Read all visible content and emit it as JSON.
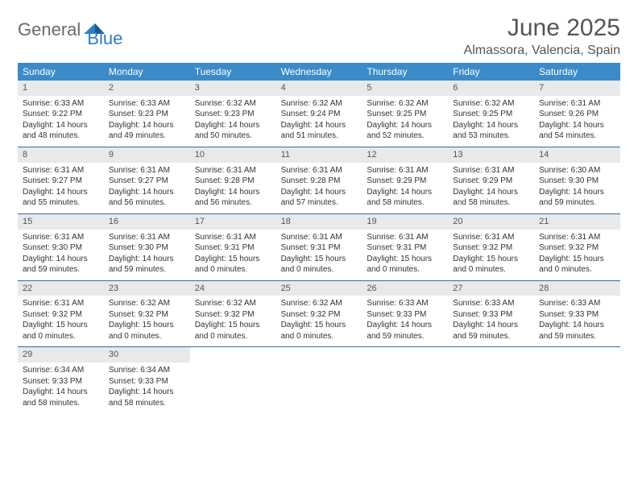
{
  "logo": {
    "part1": "General",
    "part2": "Blue"
  },
  "title": "June 2025",
  "location": "Almassora, Valencia, Spain",
  "colors": {
    "header_bg": "#3b8bc8",
    "header_text": "#ffffff",
    "daynum_bg": "#e8e9ea",
    "week_border": "#2f6da3",
    "title_color": "#555555",
    "body_text": "#333333",
    "logo_gray": "#6a6a6a",
    "logo_blue": "#2f7ec2"
  },
  "weekdays": [
    "Sunday",
    "Monday",
    "Tuesday",
    "Wednesday",
    "Thursday",
    "Friday",
    "Saturday"
  ],
  "weeks": [
    [
      {
        "n": "1",
        "sr": "Sunrise: 6:33 AM",
        "ss": "Sunset: 9:22 PM",
        "d1": "Daylight: 14 hours",
        "d2": "and 48 minutes."
      },
      {
        "n": "2",
        "sr": "Sunrise: 6:33 AM",
        "ss": "Sunset: 9:23 PM",
        "d1": "Daylight: 14 hours",
        "d2": "and 49 minutes."
      },
      {
        "n": "3",
        "sr": "Sunrise: 6:32 AM",
        "ss": "Sunset: 9:23 PM",
        "d1": "Daylight: 14 hours",
        "d2": "and 50 minutes."
      },
      {
        "n": "4",
        "sr": "Sunrise: 6:32 AM",
        "ss": "Sunset: 9:24 PM",
        "d1": "Daylight: 14 hours",
        "d2": "and 51 minutes."
      },
      {
        "n": "5",
        "sr": "Sunrise: 6:32 AM",
        "ss": "Sunset: 9:25 PM",
        "d1": "Daylight: 14 hours",
        "d2": "and 52 minutes."
      },
      {
        "n": "6",
        "sr": "Sunrise: 6:32 AM",
        "ss": "Sunset: 9:25 PM",
        "d1": "Daylight: 14 hours",
        "d2": "and 53 minutes."
      },
      {
        "n": "7",
        "sr": "Sunrise: 6:31 AM",
        "ss": "Sunset: 9:26 PM",
        "d1": "Daylight: 14 hours",
        "d2": "and 54 minutes."
      }
    ],
    [
      {
        "n": "8",
        "sr": "Sunrise: 6:31 AM",
        "ss": "Sunset: 9:27 PM",
        "d1": "Daylight: 14 hours",
        "d2": "and 55 minutes."
      },
      {
        "n": "9",
        "sr": "Sunrise: 6:31 AM",
        "ss": "Sunset: 9:27 PM",
        "d1": "Daylight: 14 hours",
        "d2": "and 56 minutes."
      },
      {
        "n": "10",
        "sr": "Sunrise: 6:31 AM",
        "ss": "Sunset: 9:28 PM",
        "d1": "Daylight: 14 hours",
        "d2": "and 56 minutes."
      },
      {
        "n": "11",
        "sr": "Sunrise: 6:31 AM",
        "ss": "Sunset: 9:28 PM",
        "d1": "Daylight: 14 hours",
        "d2": "and 57 minutes."
      },
      {
        "n": "12",
        "sr": "Sunrise: 6:31 AM",
        "ss": "Sunset: 9:29 PM",
        "d1": "Daylight: 14 hours",
        "d2": "and 58 minutes."
      },
      {
        "n": "13",
        "sr": "Sunrise: 6:31 AM",
        "ss": "Sunset: 9:29 PM",
        "d1": "Daylight: 14 hours",
        "d2": "and 58 minutes."
      },
      {
        "n": "14",
        "sr": "Sunrise: 6:30 AM",
        "ss": "Sunset: 9:30 PM",
        "d1": "Daylight: 14 hours",
        "d2": "and 59 minutes."
      }
    ],
    [
      {
        "n": "15",
        "sr": "Sunrise: 6:31 AM",
        "ss": "Sunset: 9:30 PM",
        "d1": "Daylight: 14 hours",
        "d2": "and 59 minutes."
      },
      {
        "n": "16",
        "sr": "Sunrise: 6:31 AM",
        "ss": "Sunset: 9:30 PM",
        "d1": "Daylight: 14 hours",
        "d2": "and 59 minutes."
      },
      {
        "n": "17",
        "sr": "Sunrise: 6:31 AM",
        "ss": "Sunset: 9:31 PM",
        "d1": "Daylight: 15 hours",
        "d2": "and 0 minutes."
      },
      {
        "n": "18",
        "sr": "Sunrise: 6:31 AM",
        "ss": "Sunset: 9:31 PM",
        "d1": "Daylight: 15 hours",
        "d2": "and 0 minutes."
      },
      {
        "n": "19",
        "sr": "Sunrise: 6:31 AM",
        "ss": "Sunset: 9:31 PM",
        "d1": "Daylight: 15 hours",
        "d2": "and 0 minutes."
      },
      {
        "n": "20",
        "sr": "Sunrise: 6:31 AM",
        "ss": "Sunset: 9:32 PM",
        "d1": "Daylight: 15 hours",
        "d2": "and 0 minutes."
      },
      {
        "n": "21",
        "sr": "Sunrise: 6:31 AM",
        "ss": "Sunset: 9:32 PM",
        "d1": "Daylight: 15 hours",
        "d2": "and 0 minutes."
      }
    ],
    [
      {
        "n": "22",
        "sr": "Sunrise: 6:31 AM",
        "ss": "Sunset: 9:32 PM",
        "d1": "Daylight: 15 hours",
        "d2": "and 0 minutes."
      },
      {
        "n": "23",
        "sr": "Sunrise: 6:32 AM",
        "ss": "Sunset: 9:32 PM",
        "d1": "Daylight: 15 hours",
        "d2": "and 0 minutes."
      },
      {
        "n": "24",
        "sr": "Sunrise: 6:32 AM",
        "ss": "Sunset: 9:32 PM",
        "d1": "Daylight: 15 hours",
        "d2": "and 0 minutes."
      },
      {
        "n": "25",
        "sr": "Sunrise: 6:32 AM",
        "ss": "Sunset: 9:32 PM",
        "d1": "Daylight: 15 hours",
        "d2": "and 0 minutes."
      },
      {
        "n": "26",
        "sr": "Sunrise: 6:33 AM",
        "ss": "Sunset: 9:33 PM",
        "d1": "Daylight: 14 hours",
        "d2": "and 59 minutes."
      },
      {
        "n": "27",
        "sr": "Sunrise: 6:33 AM",
        "ss": "Sunset: 9:33 PM",
        "d1": "Daylight: 14 hours",
        "d2": "and 59 minutes."
      },
      {
        "n": "28",
        "sr": "Sunrise: 6:33 AM",
        "ss": "Sunset: 9:33 PM",
        "d1": "Daylight: 14 hours",
        "d2": "and 59 minutes."
      }
    ],
    [
      {
        "n": "29",
        "sr": "Sunrise: 6:34 AM",
        "ss": "Sunset: 9:33 PM",
        "d1": "Daylight: 14 hours",
        "d2": "and 58 minutes."
      },
      {
        "n": "30",
        "sr": "Sunrise: 6:34 AM",
        "ss": "Sunset: 9:33 PM",
        "d1": "Daylight: 14 hours",
        "d2": "and 58 minutes."
      },
      {
        "empty": true
      },
      {
        "empty": true
      },
      {
        "empty": true
      },
      {
        "empty": true
      },
      {
        "empty": true
      }
    ]
  ]
}
